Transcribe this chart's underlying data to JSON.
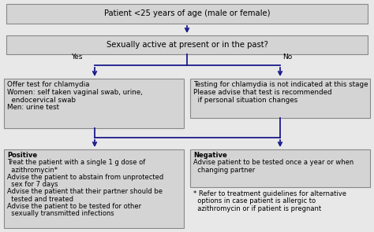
{
  "bg_color": "#e8e8e8",
  "box_fill": "#d4d4d4",
  "box_edge": "#888888",
  "arrow_color": "#1a1a8c",
  "title": "Patient <25 years of age (male or female)",
  "q1": "Sexually active at present or in the past?",
  "yes_label": "Yes",
  "no_label": "No",
  "left_box_lines": [
    "Offer test for chlamydia",
    "Women: self taken vaginal swab, urine,",
    "  endocervical swab",
    "Men: urine test"
  ],
  "right_box_lines": [
    "Testing for chlamydia is not indicated at this stage",
    "Please advise that test is recommended",
    "  if personal situation changes"
  ],
  "positive_title": "Positive",
  "positive_lines": [
    "Treat the patient with a single 1 g dose of",
    "  azithromycin*",
    "Advise the patient to abstain from unprotected",
    "  sex for 7 days",
    "Advise the patient that their partner should be",
    "  tested and treated",
    "Advise the patient to be tested for other",
    "  sexually transmitted infections"
  ],
  "negative_title": "Negative",
  "negative_lines": [
    "Advise patient to be tested once a year or when",
    "  changing partner"
  ],
  "footnote_lines": [
    "* Refer to treatment guidelines for alternative",
    "  options in case patient is allergic to",
    "  azithromycin or if patient is pregnant"
  ],
  "fig_width": 4.74,
  "fig_height": 2.95,
  "dpi": 100
}
